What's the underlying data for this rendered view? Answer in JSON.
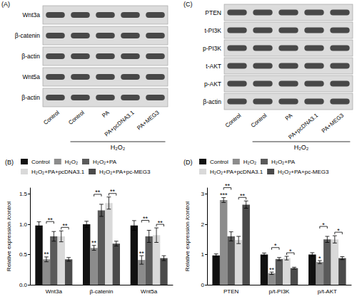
{
  "blots": [
    {
      "panel": "(A)",
      "rows": [
        "Wnt3a",
        "β-catenin",
        "β-actin",
        "Wnt5a",
        "β-actin"
      ],
      "lanes": [
        "Control",
        "Control",
        "PA",
        "PA+pcDNA3.1",
        "PA+MEG3"
      ],
      "group_label": "H₂O₂"
    },
    {
      "panel": "(C)",
      "rows": [
        "PTEN",
        "t-PI3K",
        "p-PI3K",
        "t-AKT",
        "p-AKT",
        "β-actin"
      ],
      "lanes": [
        "Control",
        "Control",
        "PA",
        "PA+pcDNA3.1",
        "PA+MEG3"
      ],
      "group_label": "H₂O₂"
    }
  ],
  "chart_data": [
    {
      "type": "bar",
      "title": "(B)",
      "y_label": "Relative expression /control",
      "categories": [
        "Wnt3a",
        "β-catenin",
        "Wnt5a"
      ],
      "series": [
        {
          "name": "Control",
          "color": "#111111",
          "values": [
            0.98,
            1.0,
            0.98
          ],
          "errors": [
            0.06,
            0.05,
            0.08
          ]
        },
        {
          "name": "H₂O₂",
          "color": "#8c8c8c",
          "values": [
            0.42,
            0.61,
            0.41
          ],
          "errors": [
            0.04,
            0.04,
            0.07
          ]
        },
        {
          "name": "H₂O₂+PA",
          "color": "#5a5a5a",
          "values": [
            0.8,
            1.23,
            0.8
          ],
          "errors": [
            0.08,
            0.1,
            0.1
          ]
        },
        {
          "name": "H₂O₂+PA+pcDNA3.1",
          "color": "#d9d9d9",
          "values": [
            0.8,
            1.35,
            0.82
          ],
          "errors": [
            0.09,
            0.1,
            0.12
          ]
        },
        {
          "name": "H₂O₂+PA+pc-MEG3",
          "color": "#4a4a4a",
          "values": [
            0.42,
            0.68,
            0.44
          ],
          "errors": [
            0.03,
            0.04,
            0.04
          ]
        }
      ],
      "annotations": [
        {
          "category": "Wnt3a",
          "series": "H₂O₂",
          "label": "**"
        },
        {
          "category": "Wnt3a",
          "between": [
            "H₂O₂",
            "H₂O₂+PA"
          ],
          "label": "**"
        },
        {
          "category": "Wnt3a",
          "between": [
            "H₂O₂+PA+pcDNA3.1",
            "H₂O₂+PA+pc-MEG3"
          ],
          "label": "**"
        },
        {
          "category": "β-catenin",
          "series": "H₂O₂",
          "label": "**"
        },
        {
          "category": "β-catenin",
          "between": [
            "H₂O₂",
            "H₂O₂+PA"
          ],
          "label": "**"
        },
        {
          "category": "β-catenin",
          "between": [
            "H₂O₂+PA+pcDNA3.1",
            "H₂O₂+PA+pc-MEG3"
          ],
          "label": "**"
        },
        {
          "category": "Wnt5a",
          "series": "H₂O₂",
          "label": "**"
        },
        {
          "category": "Wnt5a",
          "between": [
            "H₂O₂",
            "H₂O₂+PA"
          ],
          "label": "**"
        },
        {
          "category": "Wnt5a",
          "between": [
            "H₂O₂+PA+pcDNA3.1",
            "H₂O₂+PA+pc-MEG3"
          ],
          "label": "**"
        }
      ],
      "ylim": [
        0,
        1.6
      ],
      "yticks": [
        {
          "value": 0,
          "label": "0.0"
        },
        0.5,
        {
          "value": 1,
          "label": "1.0"
        },
        1.5
      ],
      "grid": false,
      "legend": "top"
    },
    {
      "type": "bar",
      "title": "(D)",
      "y_label": "Relative expression /control",
      "categories": [
        "PTEN",
        "p/t-PI3K",
        "p/t-AKT"
      ],
      "series": [
        {
          "name": "Control",
          "color": "#111111",
          "values": [
            0.97,
            1.0,
            1.0
          ],
          "errors": [
            0.05,
            0.05,
            0.06
          ]
        },
        {
          "name": "H₂O₂",
          "color": "#8c8c8c",
          "values": [
            2.8,
            0.38,
            0.75
          ],
          "errors": [
            0.08,
            0.04,
            0.05
          ]
        },
        {
          "name": "H₂O₂+PA",
          "color": "#5a5a5a",
          "values": [
            1.6,
            0.85,
            1.5
          ],
          "errors": [
            0.15,
            0.05,
            0.1
          ]
        },
        {
          "name": "H₂O₂+PA+pcDNA3.1",
          "color": "#d9d9d9",
          "values": [
            1.48,
            0.88,
            1.5
          ],
          "errors": [
            0.12,
            0.06,
            0.12
          ]
        },
        {
          "name": "H₂O₂+PA+pc-MEG3",
          "color": "#4a4a4a",
          "values": [
            2.65,
            0.55,
            0.88
          ],
          "errors": [
            0.12,
            0.03,
            0.05
          ]
        }
      ],
      "annotations": [
        {
          "category": "PTEN",
          "series": "H₂O₂",
          "label": "***"
        },
        {
          "category": "PTEN",
          "between": [
            "H₂O₂",
            "H₂O₂+PA"
          ],
          "label": "**"
        },
        {
          "category": "PTEN",
          "between": [
            "H₂O₂+PA+pcDNA3.1",
            "H₂O₂+PA+pc-MEG3"
          ],
          "label": "**"
        },
        {
          "category": "p/t-PI3K",
          "series": "H₂O₂",
          "label": "**"
        },
        {
          "category": "p/t-PI3K",
          "between": [
            "H₂O₂",
            "H₂O₂+PA"
          ],
          "label": "*"
        },
        {
          "category": "p/t-PI3K",
          "between": [
            "H₂O₂+PA+pcDNA3.1",
            "H₂O₂+PA+pc-MEG3"
          ],
          "label": "*"
        },
        {
          "category": "p/t-AKT",
          "series": "H₂O₂",
          "label": "*"
        },
        {
          "category": "p/t-AKT",
          "between": [
            "H₂O₂",
            "H₂O₂+PA"
          ],
          "label": "*"
        },
        {
          "category": "p/t-AKT",
          "between": [
            "H₂O₂+PA+pcDNA3.1",
            "H₂O₂+PA+pc-MEG3"
          ],
          "label": "*"
        }
      ],
      "ylim": [
        0,
        3.2
      ],
      "yticks": [
        0,
        1,
        2,
        3
      ],
      "grid": false,
      "legend": "top"
    }
  ]
}
